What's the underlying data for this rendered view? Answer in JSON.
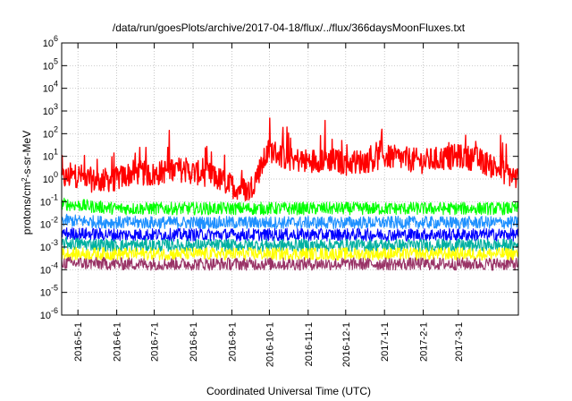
{
  "chart_data": {
    "type": "line",
    "title": "/data/run/goesPlots/archive/2017-04-18/flux/../flux/366daysMoonFluxes.txt",
    "xlabel": "Coordinated Universal Time (UTC)",
    "ylabel": {
      "prefix": "protons/cm",
      "sup": "2",
      "suffix": "-s-sr-MeV"
    },
    "yscale": "log",
    "ylim": [
      1e-06,
      1000000.0
    ],
    "xlim": [
      "2016-04-18",
      "2017-04-18"
    ],
    "grid": true,
    "legend": "none",
    "y_ticks": [
      {
        "value": 1e-06,
        "base": "10",
        "exp": "-6"
      },
      {
        "value": 1e-05,
        "base": "10",
        "exp": "-5"
      },
      {
        "value": 0.0001,
        "base": "10",
        "exp": "-4"
      },
      {
        "value": 0.001,
        "base": "10",
        "exp": "-3"
      },
      {
        "value": 0.01,
        "base": "10",
        "exp": "-2"
      },
      {
        "value": 0.1,
        "base": "10",
        "exp": "-1"
      },
      {
        "value": 1.0,
        "base": "10",
        "exp": "0"
      },
      {
        "value": 10.0,
        "base": "10",
        "exp": "1"
      },
      {
        "value": 100.0,
        "base": "10",
        "exp": "2"
      },
      {
        "value": 1000.0,
        "base": "10",
        "exp": "3"
      },
      {
        "value": 10000.0,
        "base": "10",
        "exp": "4"
      },
      {
        "value": 100000.0,
        "base": "10",
        "exp": "5"
      },
      {
        "value": 1000000.0,
        "base": "10",
        "exp": "6"
      }
    ],
    "x_ticks": [
      {
        "date": "2016-05-01",
        "label": "2016-5-1"
      },
      {
        "date": "2016-06-01",
        "label": "2016-6-1"
      },
      {
        "date": "2016-07-01",
        "label": "2016-7-1"
      },
      {
        "date": "2016-08-01",
        "label": "2016-8-1"
      },
      {
        "date": "2016-09-01",
        "label": "2016-9-1"
      },
      {
        "date": "2016-10-01",
        "label": "2016-10-1"
      },
      {
        "date": "2016-11-01",
        "label": "2016-11-1"
      },
      {
        "date": "2016-12-01",
        "label": "2016-12-1"
      },
      {
        "date": "2017-01-01",
        "label": "2017-1-1"
      },
      {
        "date": "2017-02-01",
        "label": "2017-2-1"
      },
      {
        "date": "2017-03-01",
        "label": "2017-3-1"
      }
    ],
    "series": [
      {
        "color": "#ff0000",
        "x": [
          "2016-04-18",
          "2016-05-01",
          "2016-05-15",
          "2016-06-01",
          "2016-06-15",
          "2016-07-01",
          "2016-07-15",
          "2016-08-01",
          "2016-08-15",
          "2016-09-01",
          "2016-09-15",
          "2016-10-01",
          "2016-10-15",
          "2016-11-01",
          "2016-11-15",
          "2016-12-01",
          "2016-12-15",
          "2017-01-01",
          "2017-01-15",
          "2017-02-01",
          "2017-02-15",
          "2017-03-01",
          "2017-03-15",
          "2017-04-01",
          "2017-04-18"
        ],
        "y": [
          1.0,
          1.5,
          0.8,
          1.0,
          2.0,
          1.5,
          3.0,
          2.0,
          1.5,
          0.5,
          0.3,
          20,
          8,
          6,
          8,
          5,
          6,
          10,
          8,
          6,
          8,
          10,
          8,
          3,
          1
        ]
      },
      {
        "color": "#00ff00",
        "x": [
          "2016-04-18",
          "2016-06-01",
          "2016-08-01",
          "2016-10-01",
          "2016-12-01",
          "2017-02-01",
          "2017-04-18"
        ],
        "y": [
          0.08,
          0.05,
          0.05,
          0.05,
          0.05,
          0.05,
          0.05
        ]
      },
      {
        "color": "#1e90ff",
        "x": [
          "2016-04-18",
          "2016-06-01",
          "2016-08-01",
          "2016-10-01",
          "2016-12-01",
          "2017-02-01",
          "2017-04-18"
        ],
        "y": [
          0.015,
          0.012,
          0.012,
          0.012,
          0.012,
          0.012,
          0.012
        ]
      },
      {
        "color": "#0000ff",
        "x": [
          "2016-04-18",
          "2016-06-01",
          "2016-08-01",
          "2016-10-01",
          "2016-12-01",
          "2017-02-01",
          "2017-04-18"
        ],
        "y": [
          0.004,
          0.0035,
          0.0035,
          0.0035,
          0.0035,
          0.0035,
          0.0035
        ]
      },
      {
        "color": "#00b0a0",
        "x": [
          "2016-04-18",
          "2016-06-01",
          "2016-08-01",
          "2016-10-01",
          "2016-12-01",
          "2017-02-01",
          "2017-04-18"
        ],
        "y": [
          0.0015,
          0.0012,
          0.0012,
          0.0012,
          0.0012,
          0.0012,
          0.0012
        ]
      },
      {
        "color": "#ffff00",
        "x": [
          "2016-04-18",
          "2016-06-01",
          "2016-08-01",
          "2016-10-01",
          "2016-12-01",
          "2017-02-01",
          "2017-04-18"
        ],
        "y": [
          0.0005,
          0.0005,
          0.0005,
          0.0005,
          0.0005,
          0.0005,
          0.0005
        ]
      },
      {
        "color": "#993366",
        "x": [
          "2016-04-18",
          "2016-06-01",
          "2016-08-01",
          "2016-10-01",
          "2016-12-01",
          "2017-02-01",
          "2017-04-18"
        ],
        "y": [
          0.0002,
          0.00018,
          0.00018,
          0.00018,
          0.00018,
          0.00018,
          0.00018
        ]
      }
    ]
  }
}
